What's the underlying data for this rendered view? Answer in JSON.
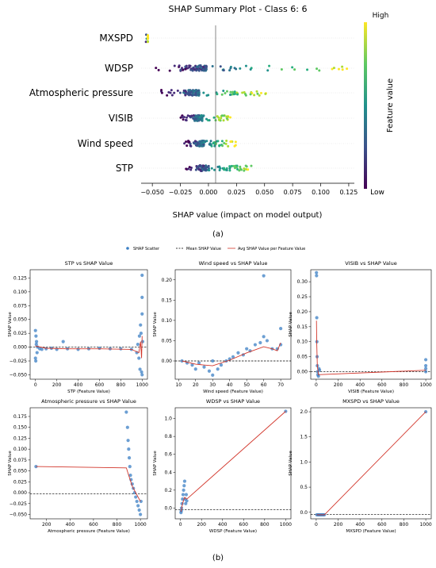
{
  "summary": {
    "title": "SHAP Summary Plot - Class 6: 6",
    "xlabel": "SHAP value (impact on model output)",
    "xticks": [
      "−0.050",
      "−0.025",
      "0.000",
      "0.025",
      "0.050",
      "0.075",
      "0.100",
      "0.125"
    ],
    "features": [
      "MXSPD",
      "WDSP",
      "Atmospheric pressure",
      "VISIB",
      "Wind speed",
      "STP"
    ],
    "colorbar": {
      "label": "Feature value",
      "high": "High",
      "low": "Low"
    },
    "caption": "(a)"
  },
  "legend": {
    "scatter": "SHAP Scatter",
    "mean": "Mean SHAP Value",
    "avg": "Avg SHAP Value per Feature Value"
  },
  "colors": {
    "scatter": "#3b7fc4",
    "mean": "#000000",
    "avg": "#d2362b"
  },
  "caption_b": "(b)",
  "chart_data": [
    {
      "type": "scatter",
      "title": "SHAP Summary Plot - Class 6: 6",
      "xlabel": "SHAP value (impact on model output)",
      "xlim": [
        -0.06,
        0.13
      ],
      "series": [
        {
          "name": "MXSPD",
          "range": [
            -0.056,
            -0.054
          ]
        },
        {
          "name": "WDSP",
          "range": [
            -0.048,
            0.125
          ]
        },
        {
          "name": "Atmospheric pressure",
          "range": [
            -0.045,
            0.052
          ]
        },
        {
          "name": "VISIB",
          "range": [
            -0.025,
            0.02
          ]
        },
        {
          "name": "Wind speed",
          "range": [
            -0.022,
            0.025
          ]
        },
        {
          "name": "STP",
          "range": [
            -0.022,
            0.045
          ]
        }
      ]
    },
    {
      "type": "scatter",
      "title": "STP vs SHAP Value",
      "xlabel": "STP (Feature Value)",
      "ylabel": "SHAP Value",
      "xlim": [
        -50,
        1050
      ],
      "ylim": [
        -0.058,
        0.14
      ],
      "xticks": [
        0,
        200,
        400,
        600,
        800,
        1000
      ],
      "yticks": [
        -0.05,
        -0.025,
        0.0,
        0.025,
        0.05,
        0.075,
        0.1,
        0.125
      ],
      "xtick_labels": [
        "0",
        "200",
        "400",
        "600",
        "800",
        "1000"
      ],
      "ytick_labels": [
        "−0.050",
        "−0.025",
        "0.000",
        "0.025",
        "0.050",
        "0.075",
        "0.100",
        "0.125"
      ],
      "mean": 0.0,
      "points": [
        [
          0,
          0.03
        ],
        [
          5,
          0.02
        ],
        [
          10,
          0.01
        ],
        [
          0,
          -0.02
        ],
        [
          3,
          -0.025
        ],
        [
          8,
          0.005
        ],
        [
          15,
          -0.01
        ],
        [
          20,
          0.0
        ],
        [
          40,
          -0.003
        ],
        [
          60,
          -0.004
        ],
        [
          100,
          -0.003
        ],
        [
          150,
          -0.002
        ],
        [
          200,
          -0.004
        ],
        [
          260,
          0.01
        ],
        [
          300,
          -0.003
        ],
        [
          400,
          -0.004
        ],
        [
          500,
          -0.003
        ],
        [
          600,
          -0.002
        ],
        [
          700,
          -0.003
        ],
        [
          800,
          -0.003
        ],
        [
          900,
          -0.004
        ],
        [
          950,
          -0.01
        ],
        [
          960,
          0.005
        ],
        [
          970,
          -0.02
        ],
        [
          975,
          0.02
        ],
        [
          980,
          -0.04
        ],
        [
          985,
          0.04
        ],
        [
          990,
          0.025
        ],
        [
          995,
          -0.045
        ],
        [
          1000,
          0.13
        ],
        [
          1000,
          0.09
        ],
        [
          1000,
          0.06
        ],
        [
          1000,
          -0.05
        ],
        [
          1005,
          0.01
        ]
      ],
      "avg": [
        [
          0,
          0.002
        ],
        [
          100,
          -0.002
        ],
        [
          300,
          -0.003
        ],
        [
          600,
          -0.003
        ],
        [
          900,
          -0.004
        ],
        [
          970,
          -0.01
        ],
        [
          985,
          0.01
        ],
        [
          995,
          -0.02
        ],
        [
          1000,
          0.02
        ]
      ]
    },
    {
      "type": "scatter",
      "title": "Wind speed vs SHAP Value",
      "xlabel": "Wind speed (Feature Value)",
      "ylabel": "SHAP Value",
      "xlim": [
        8,
        76
      ],
      "ylim": [
        -0.045,
        0.225
      ],
      "xticks": [
        10,
        20,
        30,
        40,
        50,
        60,
        70
      ],
      "yticks": [
        0.0,
        0.05,
        0.1,
        0.15,
        0.2
      ],
      "xtick_labels": [
        "10",
        "20",
        "30",
        "40",
        "50",
        "60",
        "70"
      ],
      "ytick_labels": [
        "0.00",
        "0.05",
        "0.10",
        "0.15",
        "0.20"
      ],
      "mean": 0.0,
      "points": [
        [
          12,
          0.0
        ],
        [
          15,
          -0.005
        ],
        [
          18,
          -0.01
        ],
        [
          20,
          -0.02
        ],
        [
          22,
          -0.005
        ],
        [
          25,
          -0.015
        ],
        [
          28,
          -0.025
        ],
        [
          30,
          -0.035
        ],
        [
          30,
          0.0
        ],
        [
          33,
          -0.02
        ],
        [
          35,
          -0.01
        ],
        [
          38,
          0.0
        ],
        [
          40,
          0.005
        ],
        [
          42,
          0.01
        ],
        [
          45,
          0.02
        ],
        [
          48,
          0.015
        ],
        [
          50,
          0.03
        ],
        [
          52,
          0.025
        ],
        [
          55,
          0.04
        ],
        [
          58,
          0.045
        ],
        [
          60,
          0.21
        ],
        [
          60,
          0.06
        ],
        [
          62,
          0.05
        ],
        [
          65,
          0.03
        ],
        [
          68,
          0.03
        ],
        [
          70,
          0.08
        ],
        [
          70,
          0.04
        ]
      ],
      "avg": [
        [
          12,
          0.0
        ],
        [
          20,
          -0.008
        ],
        [
          30,
          -0.012
        ],
        [
          40,
          0.002
        ],
        [
          50,
          0.02
        ],
        [
          60,
          0.035
        ],
        [
          65,
          0.03
        ],
        [
          68,
          0.025
        ],
        [
          70,
          0.045
        ]
      ]
    },
    {
      "type": "scatter",
      "title": "VISIB vs SHAP Value",
      "xlabel": "VISIB (Feature Value)",
      "ylabel": "SHAP Value",
      "xlim": [
        -50,
        1050
      ],
      "ylim": [
        -0.025,
        0.34
      ],
      "xticks": [
        0,
        200,
        400,
        600,
        800,
        1000
      ],
      "yticks": [
        0.0,
        0.05,
        0.1,
        0.15,
        0.2,
        0.25,
        0.3
      ],
      "xtick_labels": [
        "0",
        "200",
        "400",
        "600",
        "800",
        "1000"
      ],
      "ytick_labels": [
        "0.00",
        "0.05",
        "0.10",
        "0.15",
        "0.20",
        "0.25",
        "0.30"
      ],
      "mean": 0.0,
      "points": [
        [
          2,
          0.33
        ],
        [
          3,
          0.32
        ],
        [
          5,
          0.18
        ],
        [
          6,
          0.1
        ],
        [
          8,
          0.05
        ],
        [
          10,
          0.02
        ],
        [
          12,
          0.0
        ],
        [
          15,
          -0.01
        ],
        [
          20,
          -0.015
        ],
        [
          25,
          0.01
        ],
        [
          30,
          0.005
        ],
        [
          1000,
          0.04
        ],
        [
          1000,
          0.02
        ],
        [
          1000,
          0.01
        ],
        [
          1000,
          0.0
        ]
      ],
      "avg": [
        [
          2,
          0.17
        ],
        [
          5,
          0.09
        ],
        [
          10,
          0.02
        ],
        [
          20,
          -0.01
        ],
        [
          1000,
          0.005
        ]
      ]
    },
    {
      "type": "scatter",
      "title": "Atmospheric pressure vs SHAP Value",
      "xlabel": "Atmospheric pressure (Feature Value)",
      "ylabel": "SHAP Value",
      "xlim": [
        60,
        1060
      ],
      "ylim": [
        -0.06,
        0.195
      ],
      "xticks": [
        200,
        400,
        600,
        800,
        1000
      ],
      "yticks": [
        -0.05,
        -0.025,
        0.0,
        0.025,
        0.05,
        0.075,
        0.1,
        0.125,
        0.15,
        0.175
      ],
      "xtick_labels": [
        "200",
        "400",
        "600",
        "800",
        "1000"
      ],
      "ytick_labels": [
        "−0.050",
        "−0.025",
        "0.000",
        "0.025",
        "0.050",
        "0.075",
        "0.100",
        "0.125",
        "0.150",
        "0.175"
      ],
      "mean": -0.003,
      "points": [
        [
          110,
          0.06
        ],
        [
          880,
          0.185
        ],
        [
          890,
          0.15
        ],
        [
          895,
          0.12
        ],
        [
          900,
          0.1
        ],
        [
          905,
          0.08
        ],
        [
          910,
          0.06
        ],
        [
          915,
          0.04
        ],
        [
          920,
          0.03
        ],
        [
          930,
          0.02
        ],
        [
          940,
          0.01
        ],
        [
          950,
          0.0
        ],
        [
          960,
          -0.01
        ],
        [
          970,
          -0.02
        ],
        [
          980,
          -0.03
        ],
        [
          990,
          -0.04
        ],
        [
          1000,
          -0.05
        ],
        [
          1005,
          -0.02
        ]
      ],
      "avg": [
        [
          110,
          0.06
        ],
        [
          880,
          0.057
        ],
        [
          900,
          0.04
        ],
        [
          930,
          0.015
        ],
        [
          960,
          0.0
        ],
        [
          1000,
          -0.02
        ]
      ]
    },
    {
      "type": "scatter",
      "title": "WDSP vs SHAP Value",
      "xlabel": "WDSP (Feature Value)",
      "ylabel": "SHAP Value",
      "xlim": [
        -50,
        1050
      ],
      "ylim": [
        -0.12,
        1.12
      ],
      "xticks": [
        0,
        200,
        400,
        600,
        800,
        1000
      ],
      "yticks": [
        0.0,
        0.2,
        0.4,
        0.6,
        0.8,
        1.0
      ],
      "xtick_labels": [
        "0",
        "200",
        "400",
        "600",
        "800",
        "1000"
      ],
      "ytick_labels": [
        "0.0",
        "0.2",
        "0.4",
        "0.6",
        "0.8",
        "1.0"
      ],
      "mean": -0.02,
      "points": [
        [
          5,
          -0.05
        ],
        [
          8,
          -0.03
        ],
        [
          10,
          0.0
        ],
        [
          15,
          0.05
        ],
        [
          20,
          0.1
        ],
        [
          25,
          0.15
        ],
        [
          30,
          0.2
        ],
        [
          35,
          0.25
        ],
        [
          40,
          0.3
        ],
        [
          45,
          0.1
        ],
        [
          50,
          0.05
        ],
        [
          55,
          0.15
        ],
        [
          60,
          0.08
        ],
        [
          1000,
          1.08
        ]
      ],
      "avg": [
        [
          5,
          -0.04
        ],
        [
          20,
          0.05
        ],
        [
          40,
          0.12
        ],
        [
          60,
          0.1
        ],
        [
          1000,
          1.08
        ]
      ]
    },
    {
      "type": "scatter",
      "title": "MXSPD vs SHAP Value",
      "xlabel": "MXSPD (Feature Value)",
      "ylabel": "SHAP Value",
      "xlim": [
        -50,
        1050
      ],
      "ylim": [
        -0.13,
        2.08
      ],
      "xticks": [
        0,
        200,
        400,
        600,
        800,
        1000
      ],
      "yticks": [
        0.0,
        0.5,
        1.0,
        1.5,
        2.0
      ],
      "xtick_labels": [
        "0",
        "200",
        "400",
        "600",
        "800",
        "1000"
      ],
      "ytick_labels": [
        "0.0",
        "0.5",
        "1.0",
        "1.5",
        "2.0"
      ],
      "mean": -0.04,
      "points": [
        [
          5,
          -0.05
        ],
        [
          15,
          -0.05
        ],
        [
          25,
          -0.05
        ],
        [
          35,
          -0.05
        ],
        [
          45,
          -0.05
        ],
        [
          55,
          -0.05
        ],
        [
          65,
          -0.05
        ],
        [
          75,
          -0.05
        ],
        [
          1000,
          2.0
        ]
      ],
      "avg": [
        [
          5,
          -0.05
        ],
        [
          75,
          -0.05
        ],
        [
          1000,
          2.0
        ]
      ]
    }
  ]
}
